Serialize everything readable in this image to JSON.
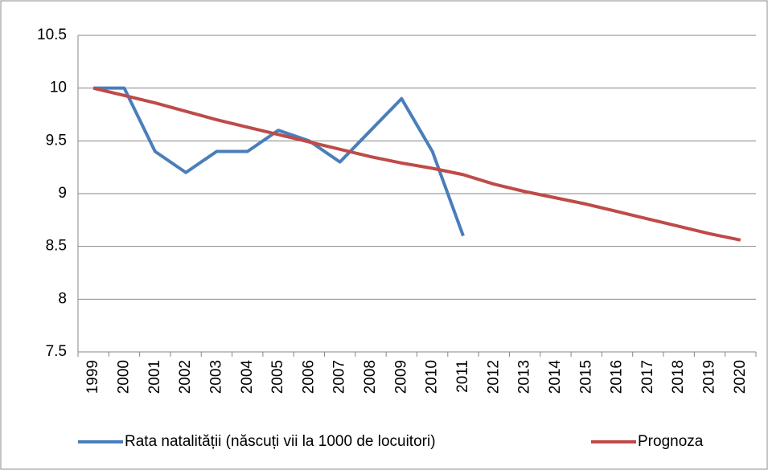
{
  "chart_data": {
    "type": "line",
    "categories": [
      "1999",
      "2000",
      "2001",
      "2002",
      "2003",
      "2004",
      "2005",
      "2006",
      "2007",
      "2008",
      "2009",
      "2010",
      "2011",
      "2012",
      "2013",
      "2014",
      "2015",
      "2016",
      "2017",
      "2018",
      "2019",
      "2020"
    ],
    "series": [
      {
        "name": "Rata natalității (născuți vii la 1000 de locuitori)",
        "color": "#4a7ebb",
        "values": [
          10,
          10,
          9.4,
          9.2,
          9.4,
          9.4,
          9.6,
          9.5,
          9.3,
          9.6,
          9.9,
          9.4,
          8.6,
          null,
          null,
          null,
          null,
          null,
          null,
          null,
          null,
          null
        ]
      },
      {
        "name": "Prognoza",
        "color": "#be4b48",
        "values": [
          10,
          9.93,
          9.86,
          9.78,
          9.7,
          9.63,
          9.56,
          9.49,
          9.42,
          9.35,
          9.29,
          9.24,
          9.18,
          9.09,
          9.02,
          8.96,
          8.9,
          8.83,
          8.76,
          8.69,
          8.62,
          8.56
        ]
      }
    ],
    "ylim": [
      7.5,
      10.5
    ],
    "yticks": [
      7.5,
      8,
      8.5,
      9,
      9.5,
      10,
      10.5
    ],
    "grid": true,
    "legend": "bottom"
  }
}
